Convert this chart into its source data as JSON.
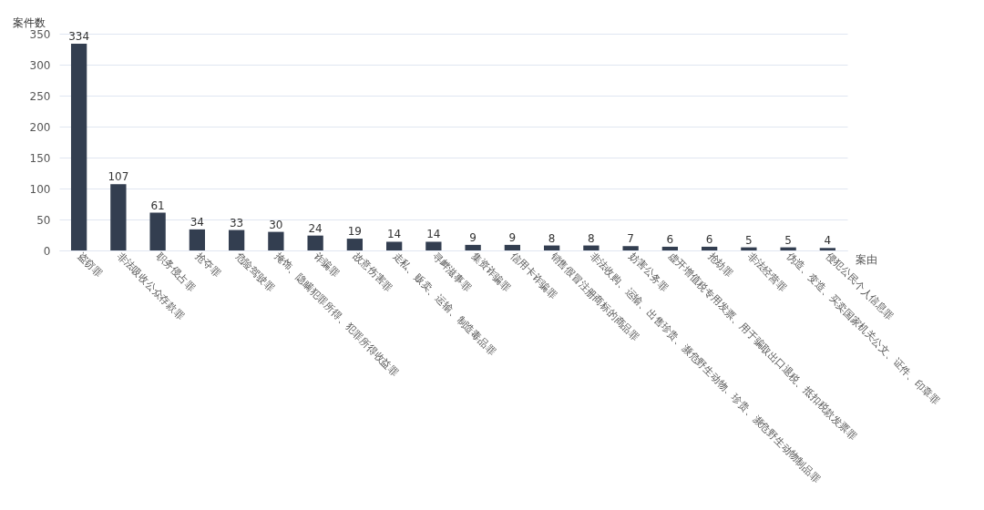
{
  "chart_data": {
    "type": "bar",
    "xlabel": "案由",
    "ylabel": "案件数",
    "categories": [
      "盗窃罪",
      "非法吸收公众存款罪",
      "职务侵占罪",
      "抢夺罪",
      "危险驾驶罪",
      "掩饰、隐瞒犯罪所得、犯罪所得收益罪",
      "诈骗罪",
      "故意伤害罪",
      "走私、贩卖、运输、制造毒品罪",
      "寻衅滋事罪",
      "集资诈骗罪",
      "信用卡诈骗罪",
      "销售假冒注册商标的商品罪",
      "非法收购、运输、出售珍贵、濒危野生动物、珍贵、濒危野生动物制品罪",
      "妨害公务罪",
      "虚开增值税专用发票、用于骗取出口退税、抵扣税款发票罪",
      "抢劫罪",
      "非法经营罪",
      "伪造、变造、买卖国家机关公文、证件、印章罪",
      "侵犯公民个人信息罪"
    ],
    "values": [
      334,
      107,
      61,
      34,
      33,
      30,
      24,
      19,
      14,
      14,
      9,
      9,
      8,
      8,
      7,
      6,
      6,
      5,
      5,
      4
    ],
    "color": "#333e50",
    "ylim": [
      0,
      350
    ],
    "yticks": [
      0,
      50,
      100,
      150,
      200,
      250,
      300,
      350
    ],
    "grid": "y",
    "data_labels": true
  }
}
